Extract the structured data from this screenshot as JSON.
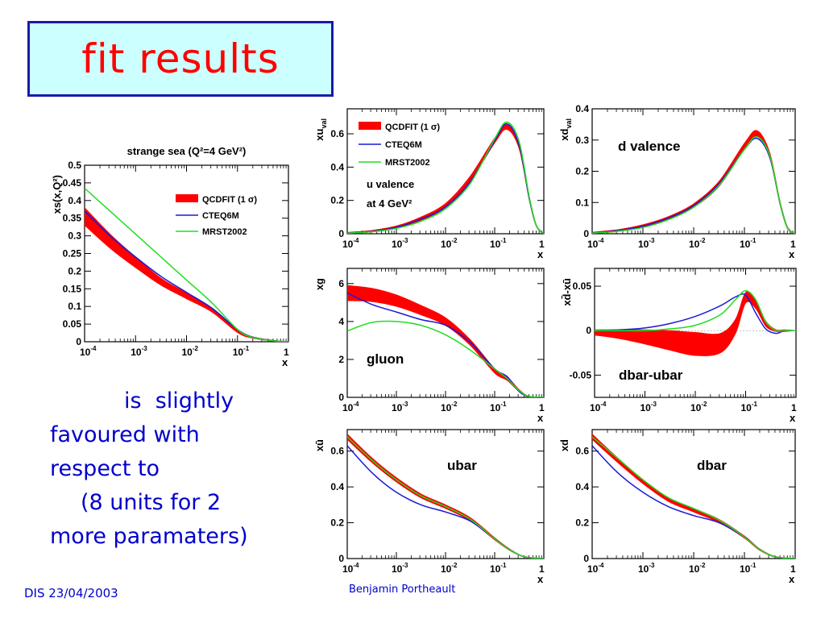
{
  "slide": {
    "title": "fit results",
    "body_lines": [
      "is  slightly",
      "favoured with",
      "respect to",
      "(8 units for 2",
      "more paramaters)"
    ],
    "footer_left": "DIS 23/04/2003",
    "footer_center": "Benjamin Portheault"
  },
  "colors": {
    "qcdfit": "#ff0000",
    "cteq6m": "#1a1ad8",
    "mrst2002": "#22dd22"
  },
  "chart_data": [
    {
      "id": "strange",
      "type": "line",
      "title": "strange sea (Q²=4 GeV²)",
      "ylabel": "xs(x,Q²)",
      "xlabel": "x",
      "xscale": "log",
      "xlim": [
        0.0001,
        1
      ],
      "ylim": [
        0,
        0.5
      ],
      "yticks": [
        "0",
        "0.05",
        "0.1",
        "0.15",
        "0.2",
        "0.25",
        "0.3",
        "0.35",
        "0.4",
        "0.45",
        "0.5"
      ],
      "legend": {
        "position": "top-right",
        "entries": [
          "QCDFIT (1 σ)",
          "CTEQ6M",
          "MRST2002"
        ]
      },
      "x": [
        0.0001,
        0.000316,
        0.001,
        0.00316,
        0.01,
        0.0316,
        0.1,
        0.2,
        0.5,
        1
      ],
      "series": [
        {
          "name": "QCDFIT (1 σ)",
          "style": "band",
          "values": [
            0.355,
            0.285,
            0.225,
            0.17,
            0.13,
            0.09,
            0.03,
            0.012,
            0.003,
            0
          ],
          "err": [
            0.025,
            0.02,
            0.015,
            0.01,
            0.008,
            0.006,
            0.004,
            0.002,
            0.001,
            0
          ]
        },
        {
          "name": "CTEQ6M",
          "style": "line",
          "values": [
            0.37,
            0.3,
            0.24,
            0.185,
            0.14,
            0.095,
            0.035,
            0.013,
            0.003,
            0
          ]
        },
        {
          "name": "MRST2002",
          "style": "line",
          "values": [
            0.435,
            0.37,
            0.305,
            0.24,
            0.175,
            0.11,
            0.035,
            0.012,
            0.003,
            0
          ]
        }
      ]
    },
    {
      "id": "uval",
      "type": "line",
      "ylabel": "xu",
      "ysub": "val",
      "xlabel": "x",
      "xscale": "log",
      "xlim": [
        0.0001,
        1
      ],
      "ylim": [
        0,
        0.75
      ],
      "yticks": [
        "0",
        "0.2",
        "0.4",
        "0.6"
      ],
      "annotation": [
        "u valence",
        "at 4 GeV²"
      ],
      "legend": {
        "position": "top-left",
        "entries": [
          "QCDFIT (1 σ)",
          "CTEQ6M",
          "MRST2002"
        ]
      },
      "x": [
        0.0001,
        0.000316,
        0.001,
        0.00316,
        0.01,
        0.0316,
        0.1,
        0.178,
        0.316,
        0.5,
        0.7,
        1
      ],
      "series": [
        {
          "name": "QCDFIT (1 σ)",
          "style": "band",
          "values": [
            0.005,
            0.015,
            0.04,
            0.09,
            0.17,
            0.33,
            0.56,
            0.64,
            0.52,
            0.22,
            0.05,
            0
          ],
          "err": [
            0.003,
            0.005,
            0.007,
            0.01,
            0.012,
            0.015,
            0.015,
            0.014,
            0.012,
            0.01,
            0.005,
            0
          ]
        },
        {
          "name": "CTEQ6M",
          "style": "line",
          "values": [
            0.005,
            0.014,
            0.038,
            0.088,
            0.16,
            0.31,
            0.56,
            0.66,
            0.53,
            0.22,
            0.05,
            0
          ]
        },
        {
          "name": "MRST2002",
          "style": "line",
          "values": [
            0.004,
            0.012,
            0.032,
            0.075,
            0.15,
            0.3,
            0.57,
            0.67,
            0.55,
            0.23,
            0.05,
            0
          ]
        }
      ]
    },
    {
      "id": "dval",
      "type": "line",
      "ylabel": "xd",
      "ysub": "val",
      "xlabel": "x",
      "xscale": "log",
      "xlim": [
        0.0001,
        1
      ],
      "ylim": [
        0,
        0.4
      ],
      "yticks": [
        "0",
        "0.1",
        "0.2",
        "0.3",
        "0.4"
      ],
      "annotation": [
        "d valence"
      ],
      "x": [
        0.0001,
        0.000316,
        0.001,
        0.00316,
        0.01,
        0.0316,
        0.1,
        0.178,
        0.316,
        0.5,
        0.7,
        1
      ],
      "series": [
        {
          "name": "QCDFIT (1 σ)",
          "style": "band",
          "values": [
            0.003,
            0.01,
            0.025,
            0.05,
            0.09,
            0.16,
            0.28,
            0.32,
            0.25,
            0.1,
            0.02,
            0
          ],
          "err": [
            0.002,
            0.003,
            0.004,
            0.005,
            0.006,
            0.008,
            0.01,
            0.01,
            0.009,
            0.006,
            0.003,
            0
          ]
        },
        {
          "name": "CTEQ6M",
          "style": "line",
          "values": [
            0.003,
            0.01,
            0.024,
            0.05,
            0.09,
            0.16,
            0.27,
            0.305,
            0.245,
            0.1,
            0.02,
            0
          ]
        },
        {
          "name": "MRST2002",
          "style": "line",
          "values": [
            0.002,
            0.008,
            0.02,
            0.045,
            0.085,
            0.155,
            0.27,
            0.31,
            0.25,
            0.1,
            0.02,
            0
          ]
        }
      ]
    },
    {
      "id": "gluon",
      "type": "line",
      "ylabel": "xg",
      "xlabel": "x",
      "xscale": "log",
      "xlim": [
        0.0001,
        1
      ],
      "ylim": [
        0,
        6.8
      ],
      "yticks": [
        "0",
        "2",
        "4",
        "6"
      ],
      "annotation": [
        "gluon"
      ],
      "x": [
        0.0001,
        0.000316,
        0.001,
        0.00316,
        0.01,
        0.0316,
        0.1,
        0.178,
        0.316,
        0.5,
        1
      ],
      "series": [
        {
          "name": "QCDFIT (1 σ)",
          "style": "band",
          "values": [
            5.5,
            5.4,
            5.1,
            4.6,
            4.0,
            2.9,
            1.4,
            1.0,
            0.35,
            0.05,
            0
          ],
          "err": [
            0.4,
            0.35,
            0.3,
            0.25,
            0.2,
            0.15,
            0.12,
            0.1,
            0.05,
            0.02,
            0
          ]
        },
        {
          "name": "CTEQ6M",
          "style": "line",
          "values": [
            5.5,
            4.9,
            4.5,
            4.1,
            3.8,
            2.9,
            1.5,
            1.1,
            0.3,
            0.05,
            0
          ]
        },
        {
          "name": "MRST2002",
          "style": "line",
          "values": [
            3.5,
            3.95,
            4.0,
            3.8,
            3.3,
            2.5,
            1.5,
            1.0,
            0.35,
            0.05,
            0
          ]
        }
      ]
    },
    {
      "id": "dbarubar",
      "type": "line",
      "ylabel": "xd̄-xū",
      "xlabel": "x",
      "xscale": "log",
      "xlim": [
        0.0001,
        1
      ],
      "ylim": [
        -0.075,
        0.07
      ],
      "yticks": [
        "-0.05",
        "0",
        "0.05"
      ],
      "annotation": [
        "dbar-ubar"
      ],
      "x": [
        0.0001,
        0.000316,
        0.001,
        0.00316,
        0.01,
        0.0316,
        0.063,
        0.1,
        0.158,
        0.25,
        0.4,
        0.6,
        1
      ],
      "series": [
        {
          "name": "QCDFIT (1 σ)",
          "style": "band",
          "values": [
            -0.002,
            -0.004,
            -0.007,
            -0.011,
            -0.015,
            -0.014,
            0.005,
            0.037,
            0.03,
            0.008,
            0.0,
            0.0,
            0
          ],
          "err": [
            0.003,
            0.005,
            0.008,
            0.011,
            0.013,
            0.011,
            0.008,
            0.006,
            0.005,
            0.003,
            0.001,
            0.001,
            0
          ]
        },
        {
          "name": "CTEQ6M",
          "style": "line",
          "values": [
            0.0,
            0.001,
            0.003,
            0.008,
            0.016,
            0.028,
            0.038,
            0.04,
            0.02,
            0.002,
            -0.003,
            0.0,
            0
          ]
        },
        {
          "name": "MRST2002",
          "style": "line",
          "values": [
            0.0,
            0.0,
            0.0,
            0.002,
            0.006,
            0.018,
            0.035,
            0.045,
            0.035,
            0.01,
            0.0,
            0.0,
            0
          ]
        }
      ]
    },
    {
      "id": "ubar",
      "type": "line",
      "ylabel": "xū",
      "xlabel": "x",
      "xscale": "log",
      "xlim": [
        0.0001,
        1
      ],
      "ylim": [
        0,
        0.72
      ],
      "yticks": [
        "0",
        "0.2",
        "0.4",
        "0.6"
      ],
      "annotation": [
        "ubar"
      ],
      "x": [
        0.0001,
        0.000316,
        0.001,
        0.00316,
        0.01,
        0.0316,
        0.1,
        0.2,
        0.4,
        1
      ],
      "series": [
        {
          "name": "QCDFIT (1 σ)",
          "style": "band",
          "values": [
            0.68,
            0.55,
            0.44,
            0.35,
            0.29,
            0.22,
            0.11,
            0.05,
            0.01,
            0
          ],
          "err": [
            0.015,
            0.013,
            0.012,
            0.011,
            0.01,
            0.009,
            0.006,
            0.004,
            0.002,
            0
          ]
        },
        {
          "name": "CTEQ6M",
          "style": "line",
          "values": [
            0.63,
            0.48,
            0.37,
            0.3,
            0.26,
            0.21,
            0.11,
            0.05,
            0.01,
            0
          ]
        },
        {
          "name": "MRST2002",
          "style": "line",
          "values": [
            0.68,
            0.55,
            0.44,
            0.35,
            0.29,
            0.22,
            0.11,
            0.05,
            0.01,
            0
          ]
        }
      ]
    },
    {
      "id": "dbar",
      "type": "line",
      "ylabel": "xd̄",
      "xlabel": "x",
      "xscale": "log",
      "xlim": [
        0.0001,
        1
      ],
      "ylim": [
        0,
        0.72
      ],
      "yticks": [
        "0",
        "0.2",
        "0.4",
        "0.6"
      ],
      "annotation": [
        "dbar"
      ],
      "x": [
        0.0001,
        0.000316,
        0.001,
        0.00316,
        0.01,
        0.0316,
        0.1,
        0.2,
        0.4,
        1
      ],
      "series": [
        {
          "name": "QCDFIT (1 σ)",
          "style": "band",
          "values": [
            0.68,
            0.55,
            0.43,
            0.33,
            0.27,
            0.21,
            0.12,
            0.05,
            0.01,
            0
          ],
          "err": [
            0.015,
            0.013,
            0.012,
            0.011,
            0.01,
            0.009,
            0.006,
            0.004,
            0.002,
            0
          ]
        },
        {
          "name": "CTEQ6M",
          "style": "line",
          "values": [
            0.63,
            0.48,
            0.37,
            0.29,
            0.24,
            0.2,
            0.12,
            0.05,
            0.01,
            0
          ]
        },
        {
          "name": "MRST2002",
          "style": "line",
          "values": [
            0.68,
            0.56,
            0.44,
            0.34,
            0.28,
            0.215,
            0.12,
            0.05,
            0.01,
            0
          ]
        }
      ]
    }
  ]
}
